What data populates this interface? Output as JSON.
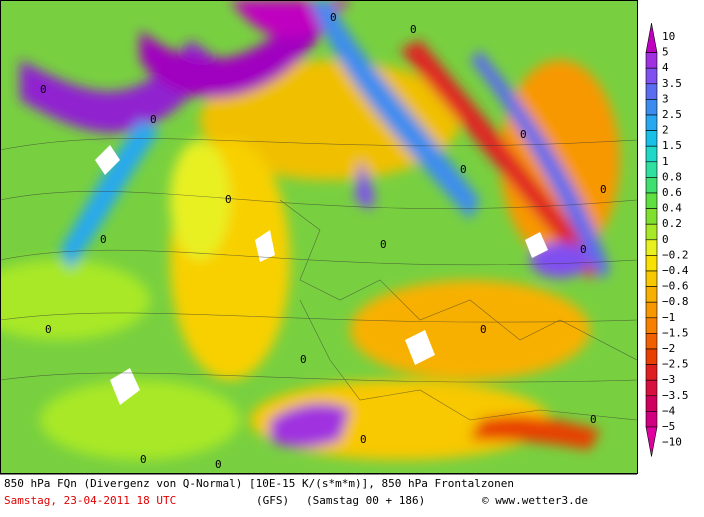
{
  "map": {
    "contour_labels": [
      "0",
      "0",
      "0",
      "0",
      "0",
      "0",
      "0",
      "0",
      "0",
      "0",
      "0",
      "0",
      "0",
      "0",
      "0",
      "0",
      "0",
      "0"
    ]
  },
  "legend": {
    "labels": [
      "10",
      "5",
      "4",
      "3.5",
      "3",
      "2.5",
      "2",
      "1.5",
      "1",
      "0.8",
      "0.6",
      "0.4",
      "0.2",
      "0",
      "−0.2",
      "−0.4",
      "−0.6",
      "−0.8",
      "−1",
      "−1.5",
      "−2",
      "−2.5",
      "−3",
      "−3.5",
      "−4",
      "−5",
      "−10"
    ],
    "colors": [
      "#c000c0",
      "#a030e0",
      "#8050f0",
      "#5a6cf0",
      "#3c8cf0",
      "#28a8f0",
      "#18c0e8",
      "#20d8c8",
      "#30e0a0",
      "#40e070",
      "#60e040",
      "#80e030",
      "#a8e828",
      "#e8f020",
      "#f8e000",
      "#f8c800",
      "#f8b000",
      "#f89800",
      "#f88000",
      "#f06000",
      "#e84000",
      "#e02020",
      "#d81040",
      "#d00060",
      "#d00080",
      "#e000a0"
    ]
  },
  "footer": {
    "line1": "850 hPa FQn (Divergenz von Q-Normal) [10E-15 K/(s*m*m)], 850 hPa Frontalzonen",
    "date": "Samstag, 23-04-2011   18 UTC",
    "model": "(GFS)",
    "run": "(Samstag 00 + 186)",
    "copyright": "© www.wetter3.de"
  }
}
